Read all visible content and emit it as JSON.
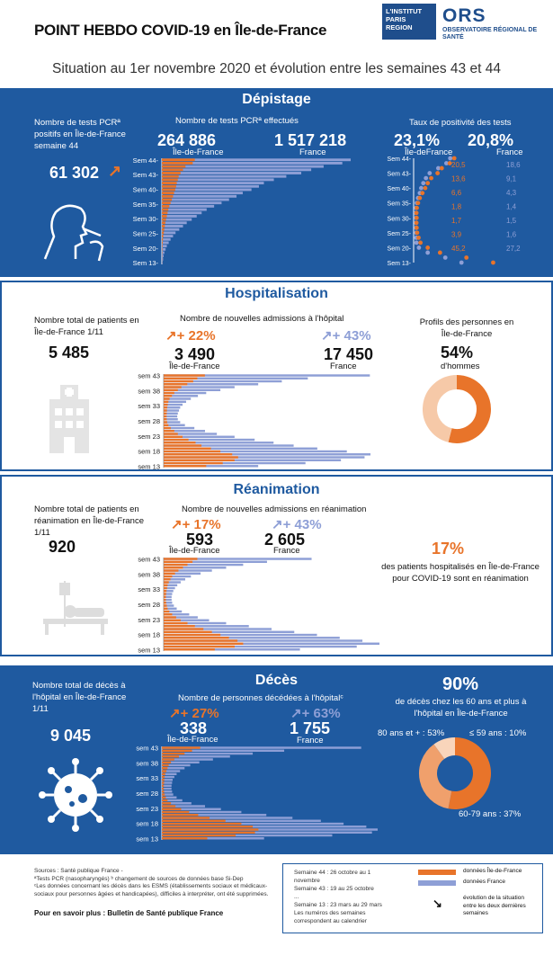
{
  "header": {
    "title": "POINT HEBDO COVID-19 en Île-de-France",
    "subtitle": "Situation au 1er novembre 2020 et évolution entre les semaines 43 et 44",
    "logo1": "L'INSTITUT PARIS REGION",
    "logo2_main": "ORS",
    "logo2_sub": "OBSERVATOIRE RÉGIONAL DE SANTÉ"
  },
  "depistage": {
    "title": "Dépistage",
    "left_label": "Nombre de tests PCRª positifs en Île-de-France semaine 44",
    "left_value": "61 302",
    "mid_label": "Nombre de tests PCRª effectués",
    "idf_value": "264 886",
    "idf_label": "Île-de-France",
    "fr_value": "1 517 218",
    "fr_label": "France",
    "right_label": "Taux de positivité des tests",
    "idf_rate": "23,1%",
    "idf_rate_label": "Île-deFrance",
    "fr_rate": "20,8%",
    "fr_rate_label": "France",
    "weeks_tests": [
      "Sem 44-",
      "Sem 43-",
      "Sem 40-",
      "Sem 35-",
      "Sem 30-",
      "Sem 25-",
      "Sem 20-",
      "Sem 13-"
    ],
    "weeks_rate": [
      "Sem 44-",
      "Sem 43-",
      "Sem 40-",
      "Sem 35-",
      "Sem 30-",
      "Sem 25-",
      "Sem 20-",
      "Sem 13-"
    ],
    "rate_idf": [
      "20,5",
      "13,6",
      "6,6",
      "1,8",
      "1,7",
      "3,9",
      "45,2"
    ],
    "rate_fr": [
      "18,6",
      "9,1",
      "4,3",
      "1,4",
      "1,5",
      "1,6",
      "27,2"
    ]
  },
  "hospitalisation": {
    "title": "Hospitalisation",
    "left_label": "Nombre total de patients en Île-de-France 1/11",
    "left_value": "5 485",
    "mid_label": "Nombre de nouvelles admissions à l'hôpital",
    "idf_evo": "+ 22%",
    "fr_evo": "+ 43%",
    "idf_value": "3 490",
    "idf_label": "Île-de-France",
    "fr_value": "17 450",
    "fr_label": "France",
    "weeks": [
      "sem 43",
      "sem 38",
      "sem 33",
      "sem 28",
      "sem 23",
      "sem 18",
      "sem 13"
    ],
    "right_label": "Profils des personnes en Île-de-France",
    "right_value": "54%",
    "right_sub": "d'hommes"
  },
  "reanimation": {
    "title": "Réanimation",
    "left_label": "Nombre total de patients en réanimation en Île-de-France 1/11",
    "left_value": "920",
    "mid_label": "Nombre de nouvelles admissions en réanimation",
    "idf_evo": "+ 17%",
    "fr_evo": "+ 43%",
    "idf_value": "593",
    "idf_label": "Île-de-France",
    "fr_value": "2 605",
    "fr_label": "France",
    "weeks": [
      "sem 43",
      "sem 38",
      "sem 33",
      "sem 28",
      "sem 23",
      "sem 18",
      "sem 13"
    ],
    "right_value": "17%",
    "right_text": "des patients hospitalisés en Île-de-France pour COVID-19 sont en réanimation"
  },
  "deces": {
    "title": "Décès",
    "left_label": "Nombre total de décès à l'hôpital en Île-de-France 1/11",
    "left_value": "9 045",
    "mid_label": "Nombre de personnes décédées à l'hôpitalᶜ",
    "idf_evo": "+ 27%",
    "fr_evo": "+ 63%",
    "idf_value": "338",
    "idf_label": "Île-de-France",
    "fr_value": "1 755",
    "fr_label": "France",
    "weeks": [
      "sem 43",
      "sem 38",
      "sem 33",
      "sem 28",
      "sem 23",
      "sem 18",
      "sem 13"
    ],
    "right_value": "90%",
    "right_text": "de décès chez les 60 ans et plus à l'hôpital en Île-de-France",
    "donut_labels": [
      "80 ans et + : 53%",
      "≤ 59 ans : 10%",
      "60-79 ans : 37%"
    ]
  },
  "footer": {
    "sources": "Sources : Santé publique France -",
    "note_a": "ªTests PCR (nasopharyngés) ᵇ changement de sources de données base Si-Dep",
    "note_c": "ᶜLes données concernant les décès dans les ESMS (établissements sociaux et médicaux-sociaux pour personnes âgées et handicapées), difficiles à interpréter, ont été supprimées.",
    "more": "Pour en savoir plus : Bulletin de Santé publique France",
    "legend_weeks": [
      "Semaine 44 : 26 octobre au 1 novembre",
      "Semaine 43 : 19 au 25 octobre",
      "...",
      "Semaine 13 : 23 mars au 29 mars",
      "Les numéros des semaines correspondent au calendrier"
    ],
    "legend_idf": "données Île-de-France",
    "legend_fr": "données France",
    "legend_evo": "évolution de la situation entre les deux dernières semaines"
  },
  "colors": {
    "blue": "#1f5aa0",
    "orange": "#e8742a",
    "lavender": "#8e9fd6"
  },
  "chart_data": [
    {
      "type": "bar",
      "title": "Nombre de tests PCR effectués",
      "series": [
        {
          "name": "Île-de-France",
          "values": [
            264886,
            248000,
            190000,
            170000,
            150000,
            135000,
            128000,
            120000,
            115000,
            108000,
            98000,
            90000,
            80000,
            70000,
            60000,
            52000,
            46000,
            40000,
            34000,
            28000,
            24000,
            20000,
            16000,
            12000,
            9000,
            7000,
            5000,
            4000,
            3000,
            2000,
            1500,
            1000
          ]
        },
        {
          "name": "France",
          "values": [
            1517218,
            1450000,
            1300000,
            1200000,
            1120000,
            1000000,
            900000,
            820000,
            780000,
            720000,
            650000,
            600000,
            540000,
            480000,
            420000,
            360000,
            320000,
            280000,
            240000,
            200000,
            170000,
            140000,
            110000,
            90000,
            70000,
            55000,
            40000,
            30000,
            20000,
            14000,
            10000,
            6000
          ]
        }
      ]
    },
    {
      "type": "scatter",
      "title": "Taux de positivité des tests",
      "series": [
        {
          "name": "Île-de-France",
          "values": [
            23.1,
            20.5,
            16,
            13.6,
            10,
            8,
            6.6,
            5,
            3.5,
            2.5,
            1.8,
            1.6,
            1.7,
            1.6,
            1.7,
            2,
            2.8,
            3.9,
            8,
            15,
            30,
            45.2
          ]
        },
        {
          "name": "France",
          "values": [
            20.8,
            18.6,
            14,
            9.1,
            7,
            5.5,
            4.3,
            3.5,
            2.5,
            1.8,
            1.4,
            1.3,
            1.5,
            1.4,
            1.5,
            1.5,
            1.5,
            1.6,
            3,
            8,
            18,
            27.2
          ]
        }
      ]
    },
    {
      "type": "bar",
      "title": "Nombre de nouvelles admissions à l'hôpital",
      "series": [
        {
          "name": "Île-de-France",
          "values": [
            3490,
            2850,
            2500,
            2000,
            1500,
            1200,
            900,
            700,
            500,
            400,
            350,
            300,
            280,
            260,
            250,
            260,
            300,
            400,
            600,
            900,
            1200,
            1600,
            2100,
            2700,
            3200,
            4000,
            4800,
            5800,
            6300,
            6000,
            5000,
            3600
          ]
        },
        {
          "name": "France",
          "values": [
            17450,
            12200,
            10000,
            8000,
            6000,
            4800,
            3600,
            2900,
            2300,
            1900,
            1600,
            1400,
            1300,
            1200,
            1150,
            1200,
            1400,
            1800,
            2600,
            3500,
            4500,
            6000,
            7700,
            9300,
            11000,
            13000,
            15500,
            17500,
            17000,
            15000,
            12000,
            8000
          ]
        }
      ]
    },
    {
      "type": "bar",
      "title": "Nombre de nouvelles admissions en réanimation",
      "series": [
        {
          "name": "Île-de-France",
          "values": [
            593,
            508,
            420,
            340,
            260,
            200,
            150,
            120,
            90,
            70,
            60,
            50,
            45,
            40,
            40,
            45,
            55,
            70,
            100,
            150,
            220,
            300,
            420,
            550,
            700,
            850,
            1000,
            1150,
            1300,
            1400,
            1250,
            900
          ]
        },
        {
          "name": "France",
          "values": [
            2605,
            1820,
            1400,
            1100,
            850,
            650,
            480,
            380,
            300,
            240,
            200,
            170,
            150,
            140,
            140,
            150,
            180,
            230,
            320,
            450,
            600,
            800,
            1100,
            1500,
            1900,
            2300,
            2700,
            3100,
            3500,
            3800,
            3400,
            2400
          ]
        }
      ]
    },
    {
      "type": "bar",
      "title": "Nombre de personnes décédées à l'hôpital",
      "series": [
        {
          "name": "Île-de-France",
          "values": [
            338,
            266,
            200,
            150,
            110,
            80,
            60,
            50,
            40,
            30,
            25,
            22,
            20,
            18,
            18,
            20,
            25,
            35,
            50,
            80,
            120,
            170,
            240,
            320,
            420,
            560,
            700,
            800,
            850,
            820,
            650,
            400
          ]
        },
        {
          "name": "France",
          "values": [
            1755,
            1077,
            800,
            600,
            450,
            330,
            250,
            200,
            160,
            130,
            110,
            95,
            90,
            85,
            85,
            90,
            100,
            130,
            180,
            260,
            380,
            520,
            700,
            920,
            1150,
            1400,
            1600,
            1800,
            1900,
            1850,
            1500,
            900
          ]
        }
      ]
    },
    {
      "type": "pie",
      "title": "Profils des personnes en Île-de-France",
      "categories": [
        "hommes",
        "femmes"
      ],
      "values": [
        54,
        46
      ]
    },
    {
      "type": "pie",
      "title": "décès par âge",
      "categories": [
        "80 ans et +",
        "60-79 ans",
        "≤ 59 ans"
      ],
      "values": [
        53,
        37,
        10
      ]
    }
  ]
}
